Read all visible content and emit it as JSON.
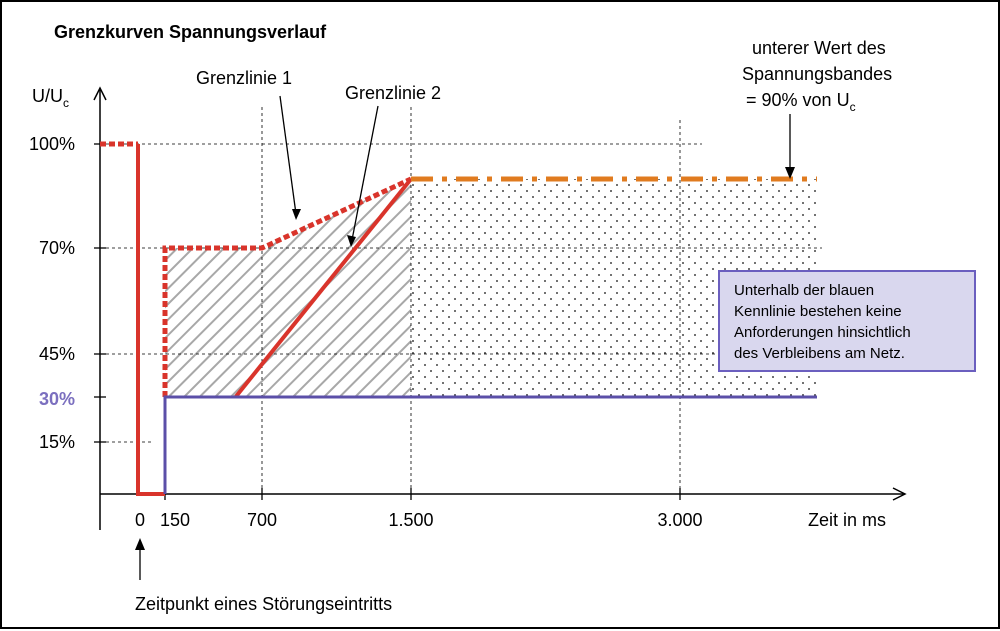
{
  "chart_data": {
    "type": "line",
    "title": "Grenzkurven Spannungsverlauf",
    "ylabel_main": "U/U",
    "ylabel_sub": "c",
    "xlabel": "Zeit in ms",
    "x_ticks": [
      {
        "value": 0,
        "label": "0"
      },
      {
        "value": 150,
        "label": "150"
      },
      {
        "value": 700,
        "label": "700"
      },
      {
        "value": 1500,
        "label": "1.500"
      },
      {
        "value": 3000,
        "label": "3.000"
      }
    ],
    "y_ticks": [
      {
        "value": 100,
        "label": "100%"
      },
      {
        "value": 70,
        "label": "70%"
      },
      {
        "value": 45,
        "label": "45%"
      },
      {
        "value": 30,
        "label": "30%",
        "color": "#7b6fbf"
      },
      {
        "value": 15,
        "label": "15%"
      }
    ],
    "series": [
      {
        "name": "Grenzlinie 1",
        "style": "dotted",
        "color": "#d9342b",
        "x": [
          -150,
          0,
          0,
          0,
          150,
          150,
          150,
          700,
          1500
        ],
        "y": [
          100,
          100,
          100,
          0,
          0,
          30,
          70,
          70,
          90
        ]
      },
      {
        "name": "Grenzlinie 2",
        "style": "solid",
        "color": "#d9342b",
        "x": [
          550,
          1500
        ],
        "y": [
          30,
          90
        ]
      },
      {
        "name": "",
        "style": "dashdot",
        "color": "#e07b1f",
        "x": [
          1500,
          3800
        ],
        "y": [
          90,
          90
        ]
      },
      {
        "name": "",
        "style": "solid",
        "color": "#5b4fa8",
        "x": [
          150,
          150,
          3800
        ],
        "y": [
          0,
          30,
          30
        ]
      }
    ],
    "regions": [
      {
        "pattern": "hatched",
        "x": [
          150,
          150,
          700,
          1500,
          1500
        ],
        "y": [
          30,
          70,
          70,
          90,
          30
        ]
      },
      {
        "pattern": "dotted",
        "x": [
          1500,
          3800
        ],
        "y": [
          30,
          90
        ]
      }
    ],
    "annotations": {
      "grenzlinie1": "Grenzlinie 1",
      "grenzlinie2": "Grenzlinie 2",
      "band_line1": "unterer Wert des",
      "band_line2": "Spannungsbandes",
      "band_line3": "= 90% von U",
      "band_sub": "c",
      "stoerung": "Zeitpunkt eines Störungseintritts",
      "info_lines": [
        "Unterhalb der blauen",
        "Kennlinie bestehen keine",
        "Anforderungen hinsichtlich",
        "des Verbleibens am Netz."
      ]
    }
  }
}
